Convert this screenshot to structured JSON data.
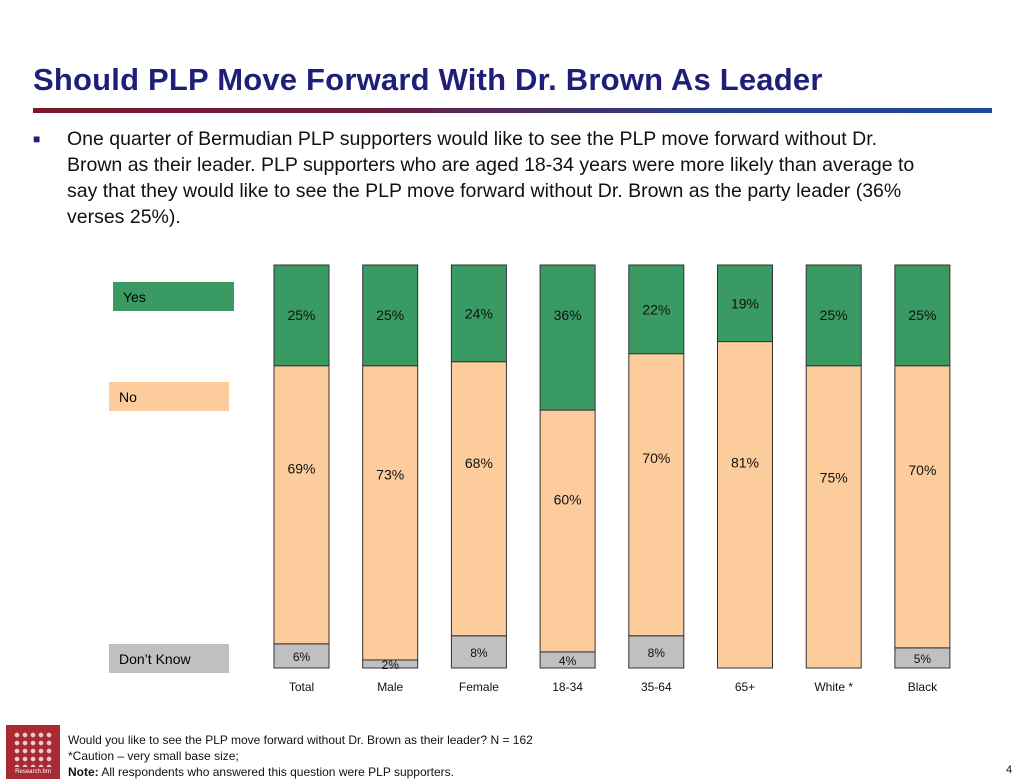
{
  "header": {
    "title": "Should PLP Move Forward With Dr. Brown As Leader",
    "bullet_marker": "■",
    "bullet": "One quarter of Bermudian PLP supporters would like to see the PLP move forward without Dr. Brown as their leader. PLP supporters who are aged 18-34 years were more likely than average to say that they would like to see the PLP move forward without Dr. Brown as the party leader (36% verses 25%)."
  },
  "legend": {
    "yes": "Yes",
    "no": "No",
    "dont_know": "Don’t Know"
  },
  "chart_data": {
    "type": "bar",
    "stacked": true,
    "percent": true,
    "categories": [
      "Total",
      "Male",
      "Female",
      "18-34",
      "35-64",
      "65+",
      "White *",
      "Black"
    ],
    "series": [
      {
        "name": "Don’t Know",
        "color": "#c0c0c0",
        "values": [
          6,
          2,
          8,
          4,
          8,
          0,
          0,
          5
        ],
        "labels": [
          "6%",
          "2%",
          "8%",
          "4%",
          "8%",
          "",
          "",
          "5%"
        ]
      },
      {
        "name": "No",
        "color": "#fccc9c",
        "values": [
          69,
          73,
          68,
          60,
          70,
          81,
          75,
          70
        ],
        "labels": [
          "69%",
          "73%",
          "68%",
          "60%",
          "70%",
          "81%",
          "75%",
          "70%"
        ]
      },
      {
        "name": "Yes",
        "color": "#3a9a64",
        "values": [
          25,
          25,
          24,
          36,
          22,
          19,
          25,
          25
        ],
        "labels": [
          "25%",
          "25%",
          "24%",
          "36%",
          "22%",
          "19%",
          "25%",
          "25%"
        ]
      }
    ],
    "ylim": [
      0,
      100
    ],
    "legend_position": "left"
  },
  "footer": {
    "logo_brand": "Research.bm",
    "question": "Would you like to see the PLP move forward without Dr. Brown as their leader? N = 162",
    "caution": "*Caution – very small base size;",
    "note_label": "Note:",
    "note_text": " All respondents who answered this question were PLP supporters.",
    "page_number": "4"
  }
}
